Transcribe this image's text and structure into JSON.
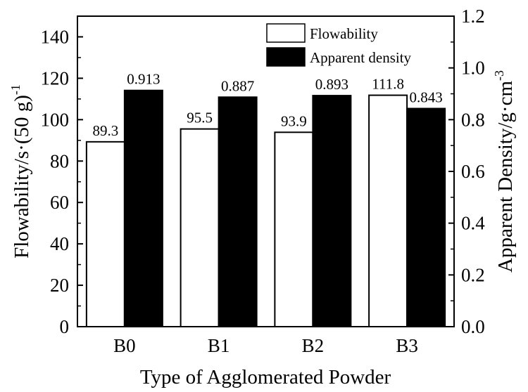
{
  "chart_data": {
    "type": "bar",
    "categories": [
      "B0",
      "B1",
      "B2",
      "B3"
    ],
    "series": [
      {
        "name": "Flowability",
        "axis": "left",
        "values": [
          89.3,
          95.5,
          93.9,
          111.8
        ],
        "labels": [
          "89.3",
          "95.5",
          "93.9",
          "111.8"
        ],
        "color": "#ffffff"
      },
      {
        "name": "Apparent density",
        "axis": "right",
        "values": [
          0.913,
          0.887,
          0.893,
          0.843
        ],
        "labels": [
          "0.913",
          "0.887",
          "0.893",
          "0.843"
        ],
        "color": "#000000"
      }
    ],
    "title": "",
    "xlabel": "Type of Agglomerated Powder",
    "ylabel": "Flowability/s·(50 g)",
    "ylabel_sup": "-1",
    "y2label": "Apparent Density/g·cm",
    "y2label_sup": "-3",
    "ylim": [
      0,
      150
    ],
    "yticks": [
      "0",
      "20",
      "40",
      "60",
      "80",
      "100",
      "120",
      "140"
    ],
    "y2lim": [
      0,
      1.2
    ],
    "y2ticks": [
      "0.0",
      "0.2",
      "0.4",
      "0.6",
      "0.8",
      "1.0",
      "1.2"
    ],
    "legend_position": "top-right",
    "grid": false
  }
}
